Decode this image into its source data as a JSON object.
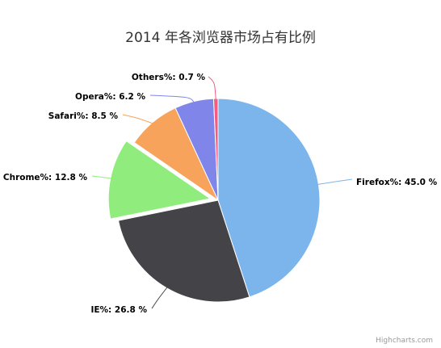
{
  "chart_data": {
    "type": "pie",
    "title": "2014 年各浏览器市场占有比例",
    "slices": [
      {
        "name": "Firefox",
        "label": "Firefox%: 45.0 %",
        "value": 45.0,
        "color": "#7cb5ec",
        "sliced": false
      },
      {
        "name": "IE",
        "label": "IE%: 26.8 %",
        "value": 26.8,
        "color": "#434348",
        "sliced": false
      },
      {
        "name": "Chrome",
        "label": "Chrome%: 12.8 %",
        "value": 12.8,
        "color": "#90ed7d",
        "sliced": true
      },
      {
        "name": "Safari",
        "label": "Safari%: 8.5 %",
        "value": 8.5,
        "color": "#f7a35c",
        "sliced": false
      },
      {
        "name": "Opera",
        "label": "Opera%: 6.2 %",
        "value": 6.2,
        "color": "#8085e9",
        "sliced": false
      },
      {
        "name": "Others",
        "label": "Others%: 0.7 %",
        "value": 0.7,
        "color": "#f15c80",
        "sliced": false
      }
    ]
  },
  "credits": "Highcharts.com"
}
